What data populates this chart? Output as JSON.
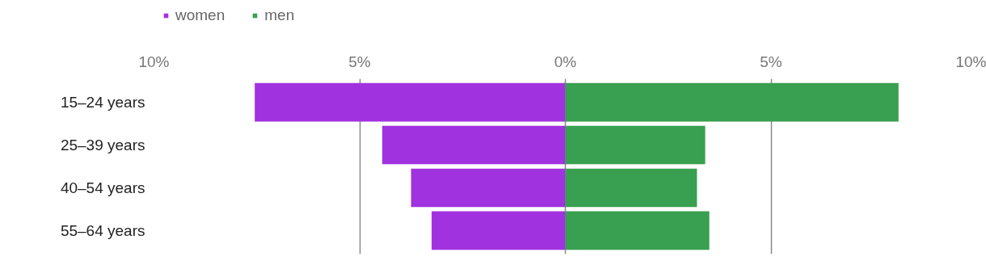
{
  "chart_data": {
    "type": "bar",
    "orientation": "horizontal",
    "stacked": true,
    "categories": [
      "15–24 years",
      "25–39 years",
      "40–54 years",
      "55–64 years"
    ],
    "series": [
      {
        "name": "women",
        "color": "#a032e0",
        "values": [
          -7.55,
          -4.45,
          -3.75,
          -3.25
        ]
      },
      {
        "name": "men",
        "color": "#38a050",
        "values": [
          8.1,
          3.4,
          3.2,
          3.5
        ]
      }
    ],
    "xlim": [
      -10,
      10
    ],
    "xticks": [
      {
        "value": -10,
        "label": "10%"
      },
      {
        "value": -5,
        "label": "5%"
      },
      {
        "value": 0,
        "label": "0%"
      },
      {
        "value": 5,
        "label": "5%"
      },
      {
        "value": 10,
        "label": "10%"
      }
    ],
    "grid": "x",
    "legend": "top left"
  }
}
